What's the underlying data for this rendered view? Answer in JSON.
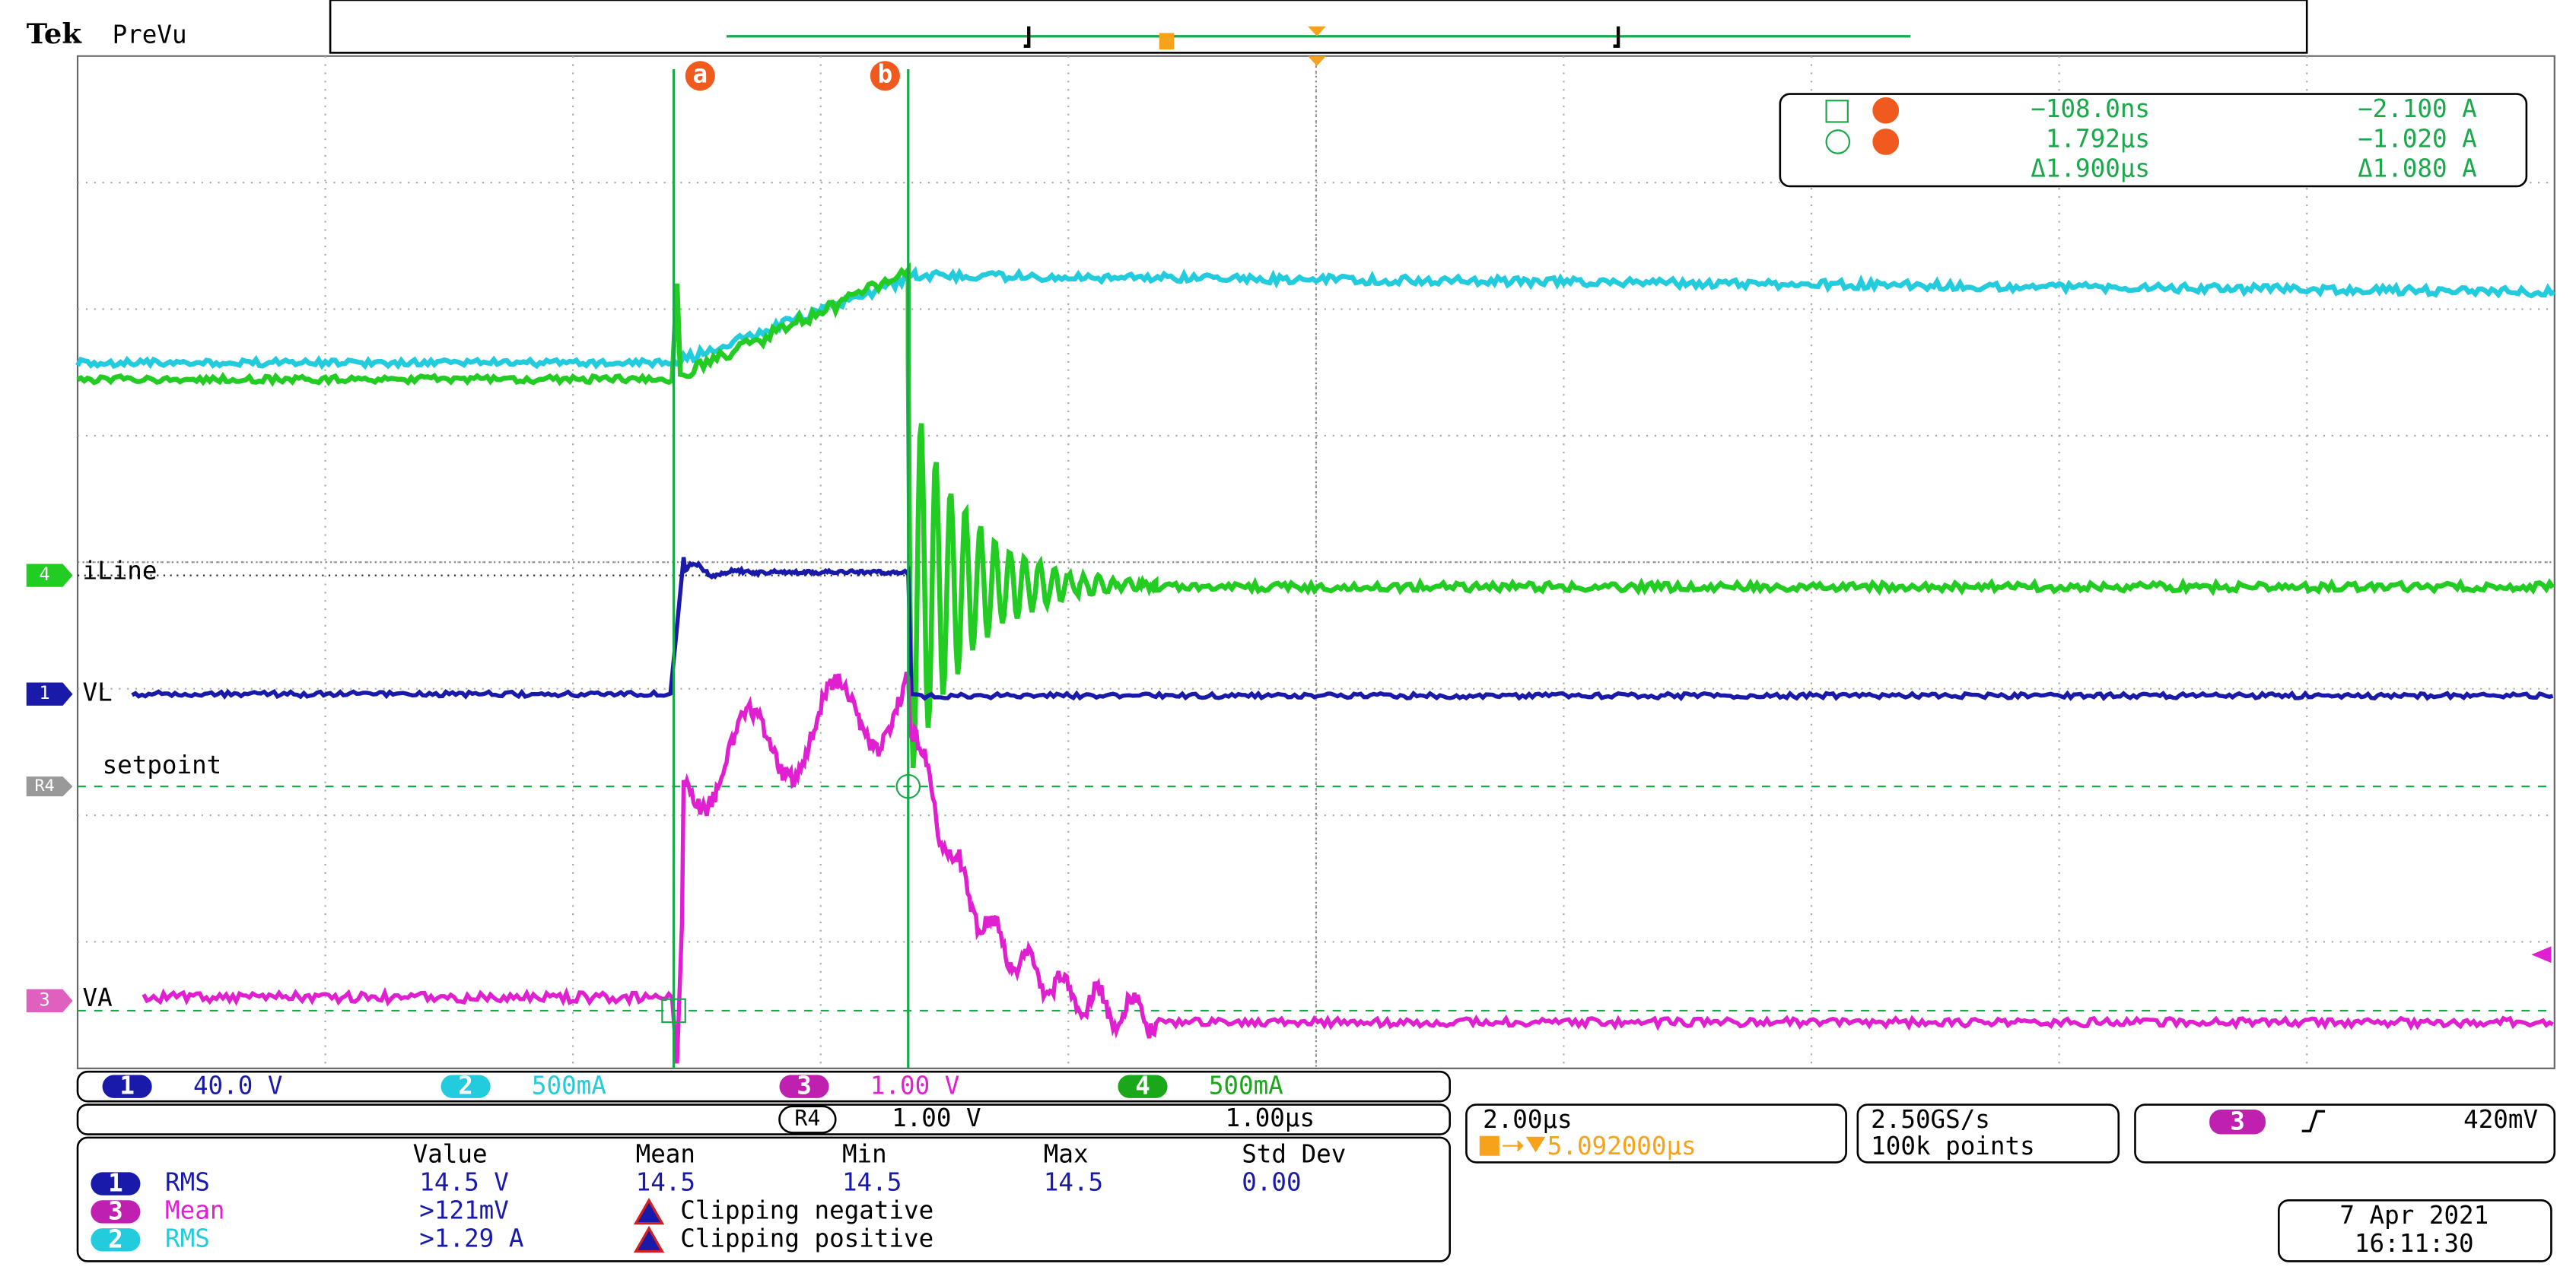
{
  "header": {
    "brand": "Tek",
    "mode": "PreVu"
  },
  "cursors": {
    "a": "a",
    "b": "b",
    "readout": [
      [
        "−108.0ns",
        "−2.100 A"
      ],
      [
        "1.792µs",
        "−1.020 A"
      ],
      [
        "Δ1.900µs",
        "Δ1.080 A"
      ]
    ]
  },
  "channels": {
    "iline": {
      "marker": "4",
      "label": "iLine"
    },
    "vl": {
      "marker": "1",
      "label": "VL"
    },
    "ref": {
      "marker": "R4",
      "label": "setpoint"
    },
    "va": {
      "marker": "3",
      "label": "VA"
    }
  },
  "channel_bar": [
    {
      "num": "1",
      "scale": "40.0 V"
    },
    {
      "num": "2",
      "scale": "500mA"
    },
    {
      "num": "3",
      "scale": "1.00 V"
    },
    {
      "num": "4",
      "scale": "500mA"
    }
  ],
  "ref_bar": {
    "name": "R4",
    "scale": "1.00 V",
    "time": "1.00µs"
  },
  "timebase": {
    "scale": "2.00µs",
    "position": "5.092000µs"
  },
  "acquisition": {
    "rate": "2.50GS/s",
    "points": "100k points"
  },
  "trigger": {
    "source": "3",
    "level": "420mV"
  },
  "measurements": {
    "headers": [
      "Value",
      "Mean",
      "Min",
      "Max",
      "Std Dev"
    ],
    "rows": [
      {
        "ch": "1",
        "name": "RMS",
        "value": "14.5 V",
        "mean": "14.5",
        "min": "14.5",
        "max": "14.5",
        "std": "0.00"
      },
      {
        "ch": "3",
        "name": "Mean",
        "value": ">121mV",
        "note": "Clipping negative"
      },
      {
        "ch": "2",
        "name": "RMS",
        "value": ">1.29 A",
        "note": "Clipping positive"
      }
    ]
  },
  "date": {
    "day": "7 Apr 2021",
    "time": "16:11:30"
  }
}
